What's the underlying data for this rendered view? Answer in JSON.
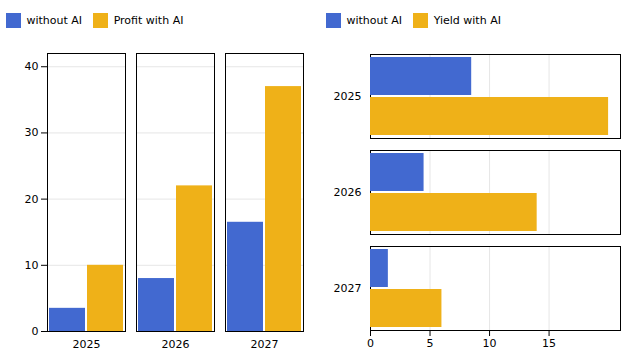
{
  "chart_data": [
    {
      "type": "bar",
      "categories": [
        "2025",
        "2026",
        "2027"
      ],
      "series": [
        {
          "name": "without AI",
          "values": [
            3.5,
            8,
            16.5
          ]
        },
        {
          "name": "Profit with AI",
          "values": [
            10,
            22,
            37
          ]
        }
      ],
      "ylim": [
        0,
        42
      ],
      "yticks": [
        0,
        10,
        20,
        30,
        40
      ],
      "grid": true,
      "legend": "top"
    },
    {
      "type": "bar",
      "orientation": "horizontal",
      "categories": [
        "2025",
        "2026",
        "2027"
      ],
      "series": [
        {
          "name": "without AI",
          "values": [
            8.5,
            4.5,
            1.5
          ]
        },
        {
          "name": "Yield with AI",
          "values": [
            20,
            14,
            6
          ]
        }
      ],
      "xlim": [
        0,
        21
      ],
      "xticks": [
        0,
        5,
        10,
        15
      ],
      "grid": true,
      "legend": "top"
    }
  ]
}
